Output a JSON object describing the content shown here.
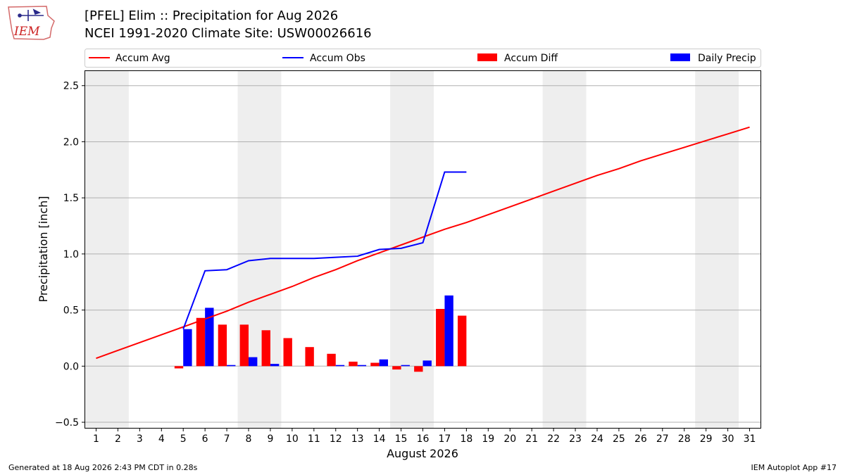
{
  "header": {
    "title": "[PFEL] Elim :: Precipitation for Aug 2026",
    "subtitle": "NCEI 1991-2020 Climate Site: USW00026616",
    "logo_text": "IEM"
  },
  "footer": {
    "generated": "Generated at 18 Aug 2026 2:43 PM CDT in 0.28s",
    "app": "IEM Autoplot App #17"
  },
  "colors": {
    "accum_avg": "#ff0000",
    "accum_obs": "#0000ff",
    "accum_diff": "#ff0000",
    "daily_precip": "#0000ff",
    "weekend_band": "#eeeeee",
    "grid": "#b0b0b0"
  },
  "chart_data": {
    "type": "bar",
    "xlabel": "August 2026",
    "ylabel": "Precipitation [inch]",
    "xlim": [
      0.5,
      31.5
    ],
    "ylim": [
      -0.55,
      2.63
    ],
    "yticks": [
      -0.5,
      0.0,
      0.5,
      1.0,
      1.5,
      2.0,
      2.5
    ],
    "ytick_labels": [
      "−0.5",
      "0.0",
      "0.5",
      "1.0",
      "1.5",
      "2.0",
      "2.5"
    ],
    "days": [
      1,
      2,
      3,
      4,
      5,
      6,
      7,
      8,
      9,
      10,
      11,
      12,
      13,
      14,
      15,
      16,
      17,
      18,
      19,
      20,
      21,
      22,
      23,
      24,
      25,
      26,
      27,
      28,
      29,
      30,
      31
    ],
    "grid": "horizontal",
    "legend_position": "top",
    "weekend_shading": [
      [
        1,
        2
      ],
      [
        8,
        9
      ],
      [
        15,
        16
      ],
      [
        22,
        23
      ],
      [
        29,
        30
      ]
    ],
    "series": [
      {
        "name": "Accum Avg",
        "kind": "line",
        "x": [
          1,
          2,
          3,
          4,
          5,
          6,
          7,
          8,
          9,
          10,
          11,
          12,
          13,
          14,
          15,
          16,
          17,
          18,
          19,
          20,
          21,
          22,
          23,
          24,
          25,
          26,
          27,
          28,
          29,
          30,
          31
        ],
        "values": [
          0.07,
          0.14,
          0.21,
          0.28,
          0.35,
          0.42,
          0.49,
          0.57,
          0.64,
          0.71,
          0.79,
          0.86,
          0.94,
          1.01,
          1.08,
          1.15,
          1.22,
          1.28,
          1.35,
          1.42,
          1.49,
          1.56,
          1.63,
          1.7,
          1.76,
          1.83,
          1.89,
          1.95,
          2.01,
          2.07,
          2.13
        ]
      },
      {
        "name": "Accum Obs",
        "kind": "line",
        "x": [
          5,
          6,
          7,
          8,
          9,
          10,
          11,
          12,
          13,
          14,
          15,
          16,
          17,
          18
        ],
        "values": [
          0.33,
          0.85,
          0.86,
          0.94,
          0.96,
          0.96,
          0.96,
          0.97,
          0.98,
          1.04,
          1.05,
          1.1,
          1.73,
          1.73
        ]
      },
      {
        "name": "Accum Diff",
        "kind": "bar",
        "x": [
          5,
          6,
          7,
          8,
          9,
          10,
          11,
          12,
          13,
          14,
          15,
          16,
          17,
          18
        ],
        "values": [
          -0.02,
          0.43,
          0.37,
          0.37,
          0.32,
          0.25,
          0.17,
          0.11,
          0.04,
          0.03,
          -0.03,
          -0.05,
          0.51,
          0.45
        ]
      },
      {
        "name": "Daily Precip",
        "kind": "bar",
        "x": [
          5,
          6,
          7,
          8,
          9,
          10,
          11,
          12,
          13,
          14,
          15,
          16,
          17,
          18
        ],
        "values": [
          0.33,
          0.52,
          0.01,
          0.08,
          0.02,
          0.0,
          0.0,
          0.01,
          0.01,
          0.06,
          0.01,
          0.05,
          0.63,
          0.0
        ]
      }
    ]
  }
}
